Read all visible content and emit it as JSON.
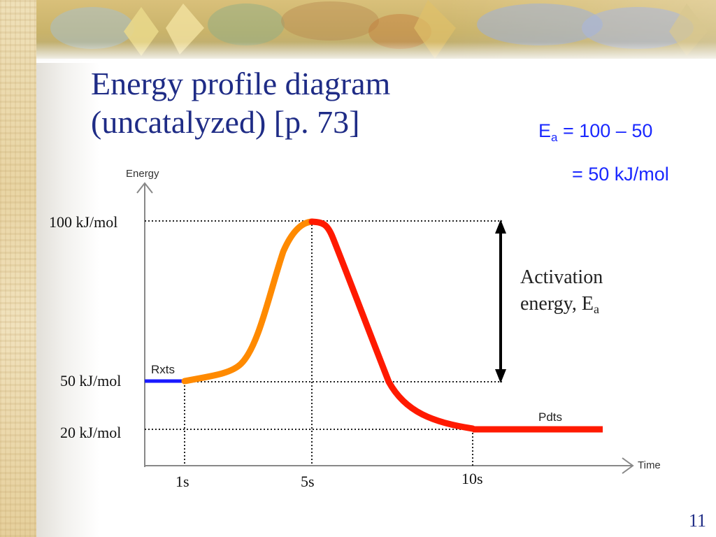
{
  "slide": {
    "title_line1": "Energy profile diagram",
    "title_line2": "(uncatalyzed) [p. 73]",
    "page_number": "11"
  },
  "equation": {
    "line1_prefix": "E",
    "line1_sub": "a",
    "line1_rest": " = 100 – 50",
    "line2": "= 50 kJ/mol"
  },
  "diagram": {
    "y_axis_label": "Energy",
    "x_axis_label": "Time",
    "y_ticks": [
      "100 kJ/mol",
      "50 kJ/mol",
      "20 kJ/mol"
    ],
    "x_ticks": [
      "1s",
      "5s",
      "10s"
    ],
    "reactants_label": "Rxts",
    "products_label": "Pdts",
    "activation_label_line1": "Activation",
    "activation_label_line2_prefix": "energy, E",
    "activation_label_sub": "a"
  },
  "colors": {
    "title": "#1f2c86",
    "equation": "#1a28ff",
    "reactant_line": "#1a1aff",
    "rising_curve": "#ff8a00",
    "falling_curve": "#ff1a00"
  }
}
